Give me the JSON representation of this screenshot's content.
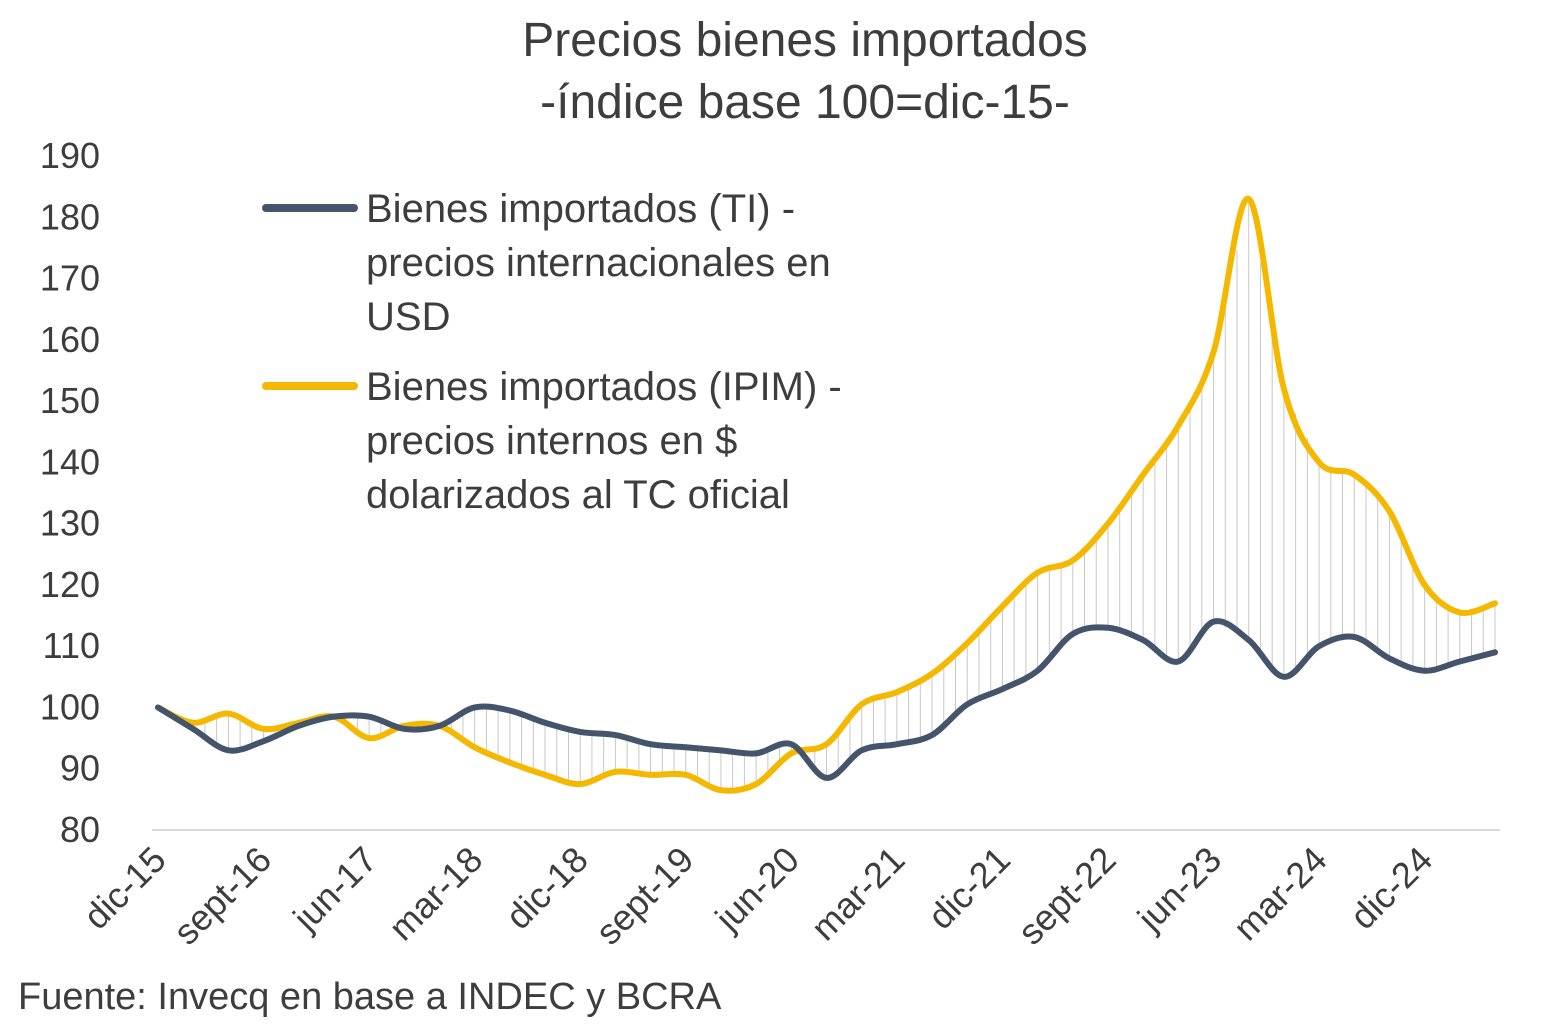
{
  "chart_data": {
    "type": "line",
    "title": "Precios bienes importados",
    "subtitle": "-índice base 100=dic-15-",
    "ylim": [
      80,
      190
    ],
    "ytick_labels": [
      "80",
      "90",
      "100",
      "110",
      "120",
      "130",
      "140",
      "150",
      "160",
      "170",
      "180",
      "190"
    ],
    "xtick_labels": [
      "dic-15",
      "sept-16",
      "jun-17",
      "mar-18",
      "dic-18",
      "sept-19",
      "jun-20",
      "mar-21",
      "dic-21",
      "sept-22",
      "jun-23",
      "mar-24",
      "dic-24"
    ],
    "x_start": "dic-15",
    "x_step_months": 3,
    "grid": false,
    "legend_position": "top-left",
    "fill_between": true,
    "series": [
      {
        "name": "Bienes importados (TI) - precios internacionales en USD",
        "color": "#44546a",
        "values": [
          100,
          96.5,
          93,
          94.5,
          97,
          98.5,
          98.5,
          96.5,
          97,
          100,
          99.5,
          97.5,
          96,
          95.5,
          94,
          93.5,
          93,
          92.5,
          94,
          88.5,
          93,
          94,
          95.5,
          100.5,
          103,
          106,
          112,
          113,
          111,
          107.5,
          114,
          111,
          105,
          110,
          111.5,
          108,
          106,
          107.5,
          109
        ]
      },
      {
        "name": "Bienes importados (IPIM) - precios internos en $ dolarizados al TC oficial",
        "color": "#f5b800",
        "values": [
          100,
          97.5,
          99,
          96.5,
          97.5,
          98.5,
          95,
          97,
          97,
          93.5,
          91,
          89,
          87.5,
          89.5,
          89,
          89,
          86.5,
          87.5,
          92.5,
          94,
          100.5,
          102.5,
          105.5,
          110.5,
          116.5,
          122,
          124,
          130,
          138,
          146,
          158,
          183,
          152,
          140,
          138,
          132,
          120,
          115.5,
          117
        ]
      }
    ]
  },
  "legend": {
    "ti": "Bienes importados (TI) -\nprecios internacionales en\nUSD",
    "ipim": "Bienes importados (IPIM) -\nprecios internos en $\ndolarizados al TC oficial"
  },
  "source": "Fuente: Invecq en base a INDEC y BCRA"
}
